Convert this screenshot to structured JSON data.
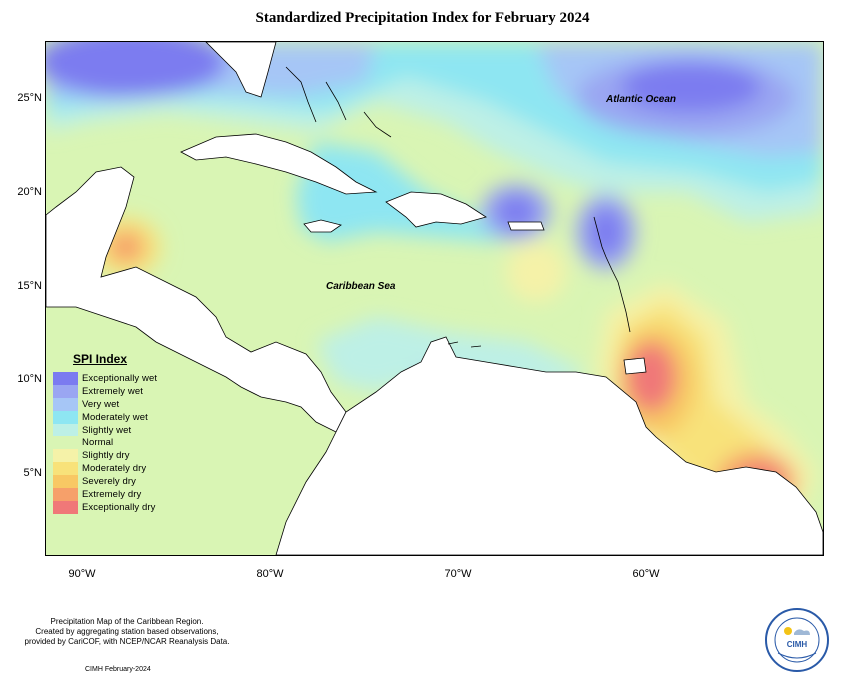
{
  "title": "Standardized Precipitation Index for February 2024",
  "lat_labels": [
    "25°N",
    "20°N",
    "15°N",
    "10°N",
    "5°N"
  ],
  "lon_labels": [
    "90°W",
    "80°W",
    "70°W",
    "60°W"
  ],
  "places": {
    "atlantic": "Atlantic Ocean",
    "caribbean": "Caribbean Sea"
  },
  "legend": {
    "title": "SPI Index",
    "items": [
      {
        "label": "Exceptionally wet",
        "color": "#7b7bf0"
      },
      {
        "label": "Extremely wet",
        "color": "#9aa6f2"
      },
      {
        "label": "Very wet",
        "color": "#a6c6f6"
      },
      {
        "label": "Moderately wet",
        "color": "#8ee6f2"
      },
      {
        "label": "Slightly wet",
        "color": "#bdf0e6"
      },
      {
        "label": "Normal",
        "color": "#d9f5b4"
      },
      {
        "label": "Slightly dry",
        "color": "#f5f2a8"
      },
      {
        "label": "Moderately dry",
        "color": "#f8e27a"
      },
      {
        "label": "Severely dry",
        "color": "#f8c864"
      },
      {
        "label": "Extremely dry",
        "color": "#f6a06a"
      },
      {
        "label": "Exceptionally dry",
        "color": "#f07878"
      }
    ]
  },
  "footer": {
    "line1": "Precipitation Map of the Caribbean Region.",
    "line2": "Created by aggregating station based observations,",
    "line3": "provided by CariCOF, with NCEP/NCAR Reanalysis Data.",
    "credit": "CIMH February-2024"
  },
  "logo_text": "CIMH"
}
